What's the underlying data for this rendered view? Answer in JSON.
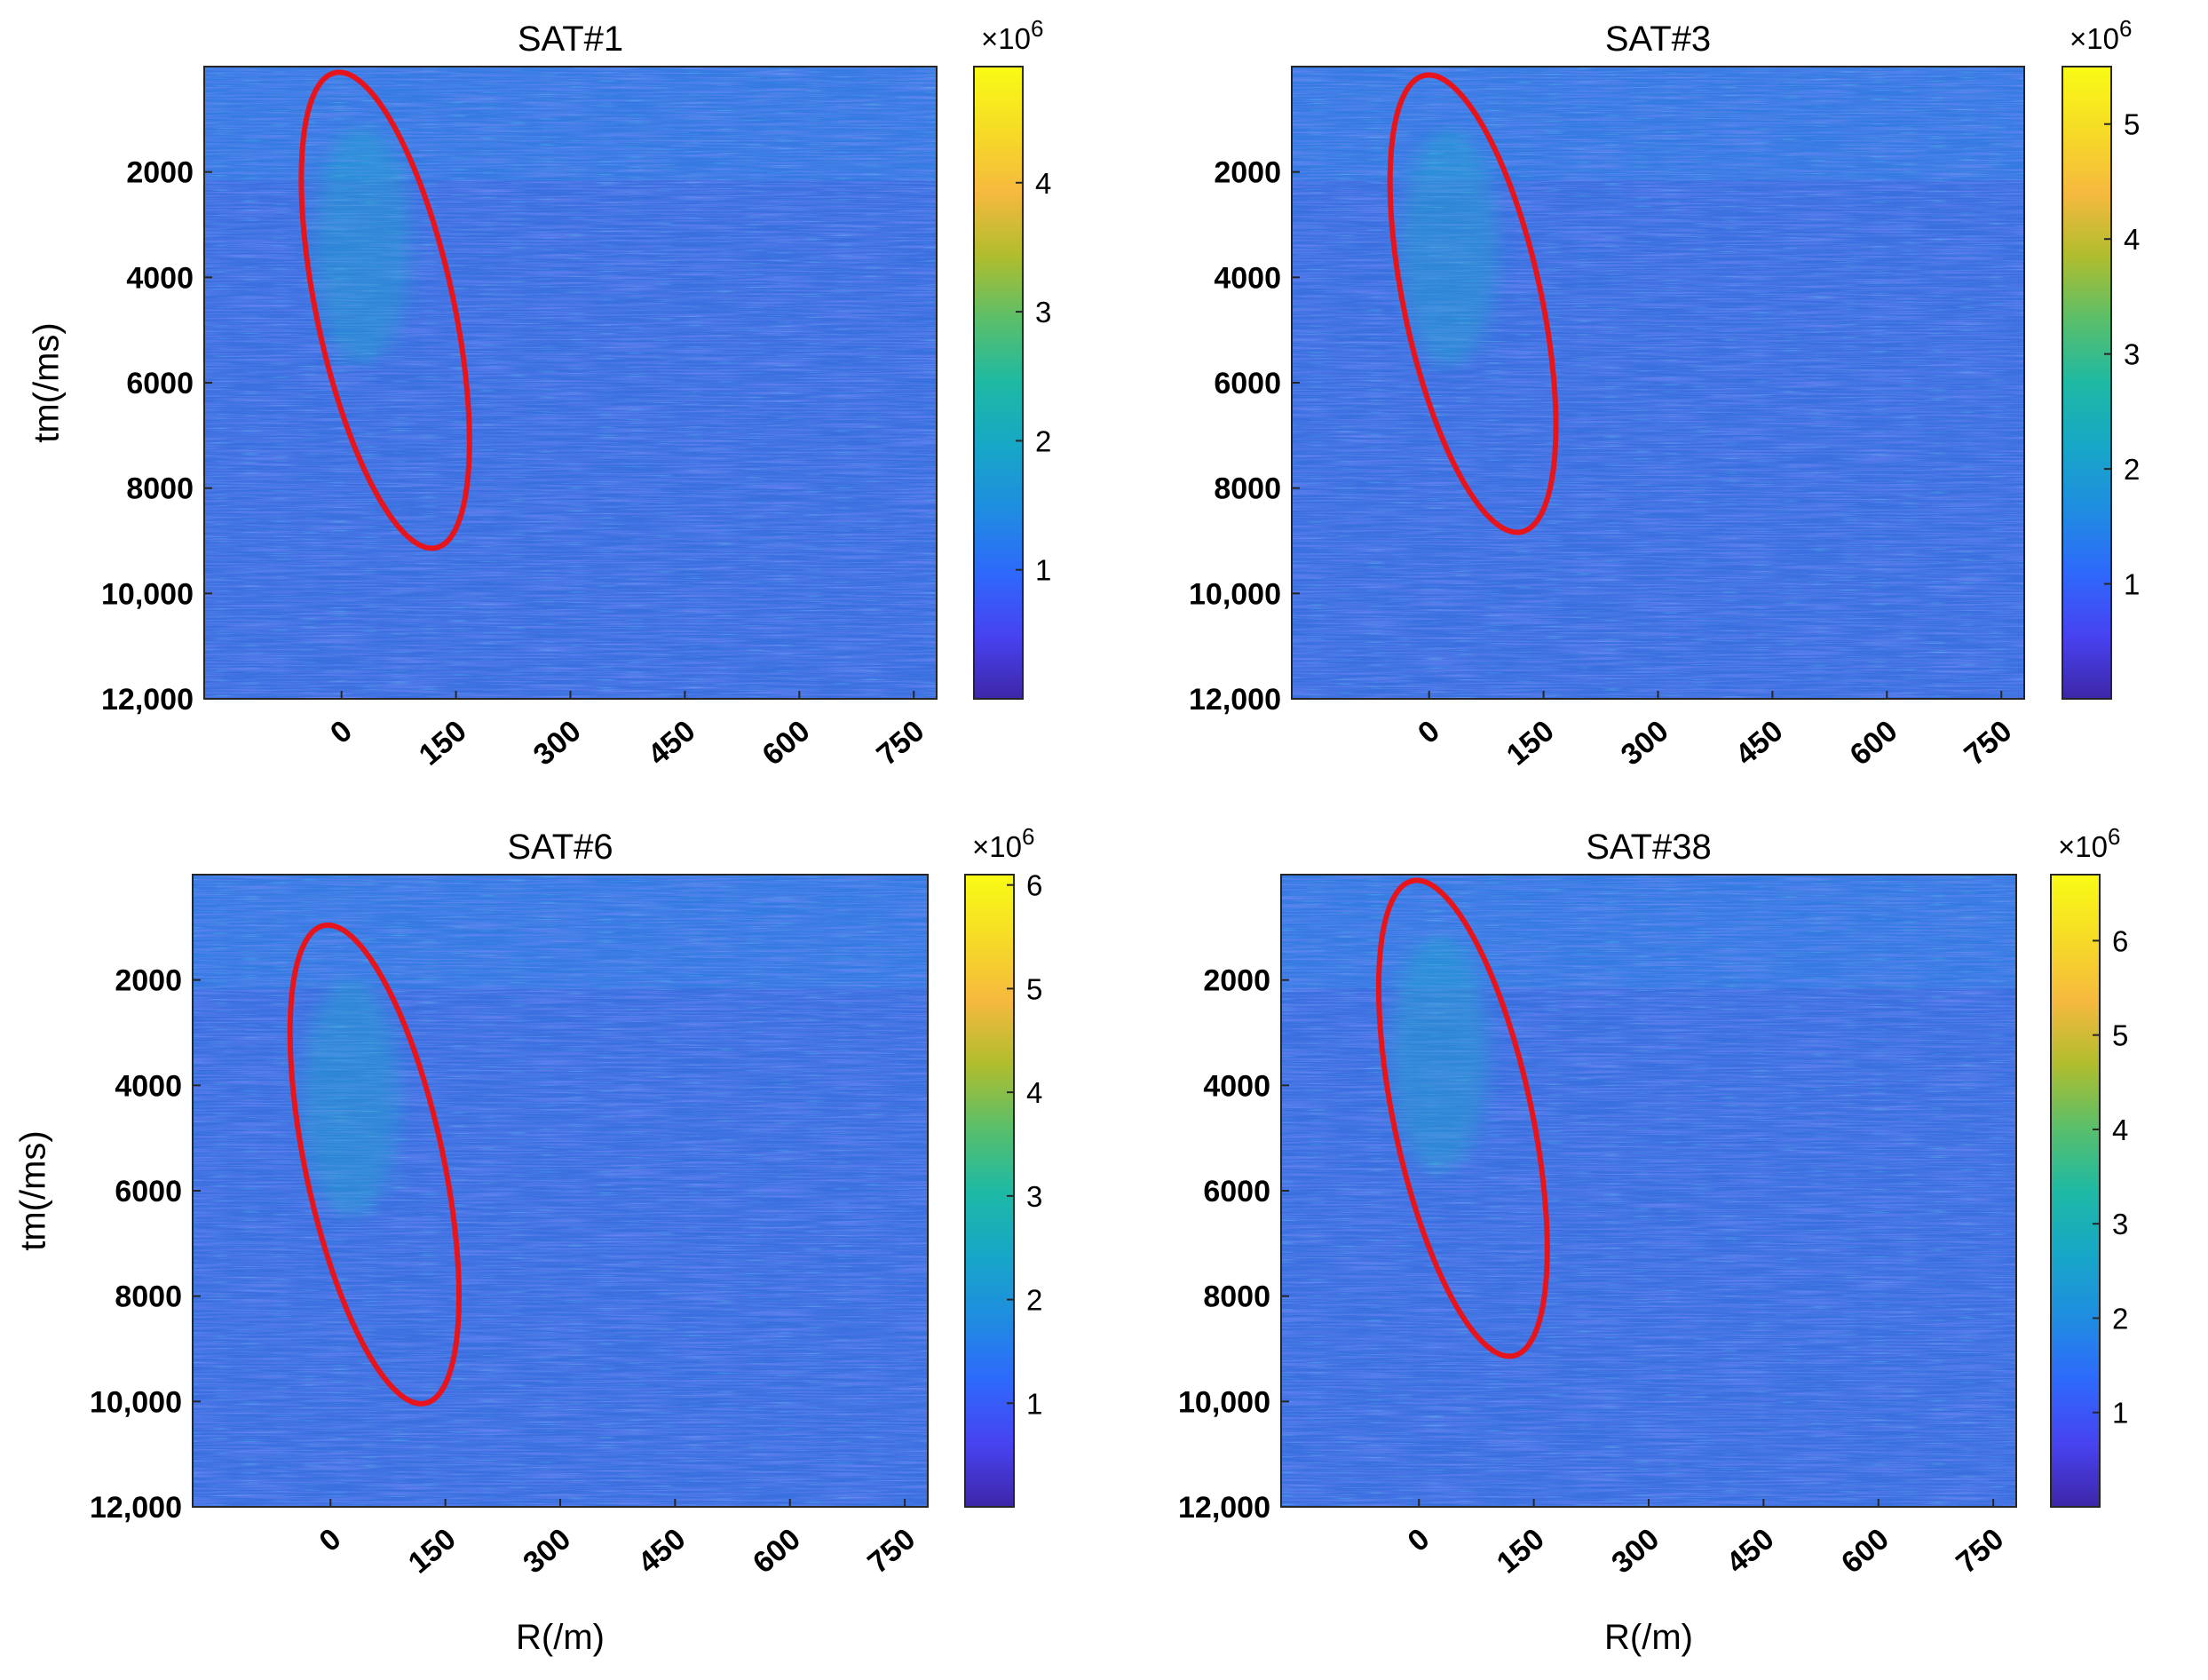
{
  "chart_data": [
    {
      "type": "heatmap",
      "title": "SAT#1",
      "xlabel": "",
      "ylabel": "tm(/ms)",
      "x_ticks": [
        "0",
        "150",
        "300",
        "450",
        "600",
        "750"
      ],
      "x_tick_values": [
        0,
        150,
        300,
        450,
        600,
        750
      ],
      "xlim": [
        -180,
        780
      ],
      "y_ticks": [
        "2000",
        "4000",
        "6000",
        "8000",
        "10,000",
        "12,000"
      ],
      "y_tick_values": [
        2000,
        4000,
        6000,
        8000,
        10000,
        12000
      ],
      "ylim": [
        12000,
        0
      ],
      "colorbar": {
        "ticks": [
          "1",
          "2",
          "3",
          "4"
        ],
        "tick_values": [
          1,
          2,
          3,
          4
        ],
        "range": [
          0,
          4.9
        ],
        "exponent": "×10^6"
      },
      "highlight_ellipse": {
        "color": "#e8141b",
        "x_range": [
          -75,
          190
        ],
        "y_range": [
          150,
          9100
        ]
      }
    },
    {
      "type": "heatmap",
      "title": "SAT#3",
      "xlabel": "",
      "ylabel": "",
      "x_ticks": [
        "0",
        "150",
        "300",
        "450",
        "600",
        "750"
      ],
      "x_tick_values": [
        0,
        150,
        300,
        450,
        600,
        750
      ],
      "xlim": [
        -180,
        780
      ],
      "y_ticks": [
        "2000",
        "4000",
        "6000",
        "8000",
        "10,000",
        "12,000"
      ],
      "y_tick_values": [
        2000,
        4000,
        6000,
        8000,
        10000,
        12000
      ],
      "ylim": [
        12000,
        0
      ],
      "colorbar": {
        "ticks": [
          "1",
          "2",
          "3",
          "4",
          "5"
        ],
        "tick_values": [
          1,
          2,
          3,
          4,
          5
        ],
        "range": [
          0,
          5.5
        ],
        "exponent": "×10^6"
      },
      "highlight_ellipse": {
        "color": "#e8141b",
        "x_range": [
          -75,
          190
        ],
        "y_range": [
          200,
          8800
        ]
      }
    },
    {
      "type": "heatmap",
      "title": "SAT#6",
      "xlabel": "R(/m)",
      "ylabel": "tm(/ms)",
      "x_ticks": [
        "0",
        "150",
        "300",
        "450",
        "600",
        "750"
      ],
      "x_tick_values": [
        0,
        150,
        300,
        450,
        600,
        750
      ],
      "xlim": [
        -180,
        780
      ],
      "y_ticks": [
        "2000",
        "4000",
        "6000",
        "8000",
        "10,000",
        "12,000"
      ],
      "y_tick_values": [
        2000,
        4000,
        6000,
        8000,
        10000,
        12000
      ],
      "ylim": [
        12000,
        0
      ],
      "colorbar": {
        "ticks": [
          "1",
          "2",
          "3",
          "4",
          "5",
          "6"
        ],
        "tick_values": [
          1,
          2,
          3,
          4,
          5,
          6
        ],
        "range": [
          0,
          6.1
        ],
        "exponent": "×10^6"
      },
      "highlight_ellipse": {
        "color": "#e8141b",
        "x_range": [
          -75,
          190
        ],
        "y_range": [
          1000,
          10000
        ]
      }
    },
    {
      "type": "heatmap",
      "title": "SAT#38",
      "xlabel": "R(/m)",
      "ylabel": "",
      "x_ticks": [
        "0",
        "150",
        "300",
        "450",
        "600",
        "750"
      ],
      "x_tick_values": [
        0,
        150,
        300,
        450,
        600,
        750
      ],
      "xlim": [
        -180,
        780
      ],
      "y_ticks": [
        "2000",
        "4000",
        "6000",
        "8000",
        "10,000",
        "12,000"
      ],
      "y_tick_values": [
        2000,
        4000,
        6000,
        8000,
        10000,
        12000
      ],
      "ylim": [
        12000,
        0
      ],
      "colorbar": {
        "ticks": [
          "1",
          "2",
          "3",
          "4",
          "5",
          "6"
        ],
        "tick_values": [
          1,
          2,
          3,
          4,
          5,
          6
        ],
        "range": [
          0,
          6.7
        ],
        "exponent": "×10^6"
      },
      "highlight_ellipse": {
        "color": "#e8141b",
        "x_range": [
          -75,
          190
        ],
        "y_range": [
          150,
          9100
        ]
      }
    }
  ],
  "colormap": [
    "#3e26a8",
    "#4743f1",
    "#2e69fb",
    "#1f8de0",
    "#17a7c7",
    "#1eb9a3",
    "#5abf6a",
    "#b0bd2e",
    "#f6b93f",
    "#f6dc26",
    "#f9fb15"
  ],
  "ellipse_color": "#e8141b",
  "background_field_color": "#3a6fe0"
}
